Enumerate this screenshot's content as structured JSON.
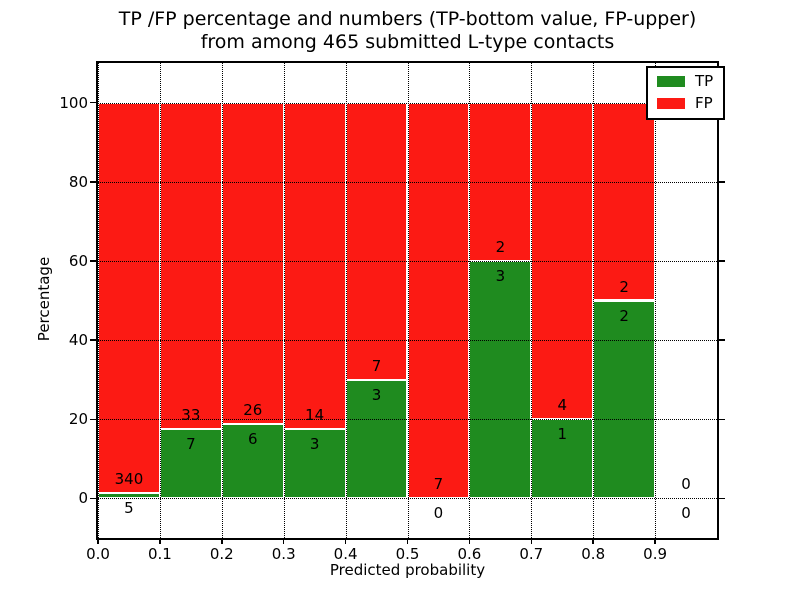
{
  "title": {
    "line1": "TP /FP percentage and numbers (TP-bottom value, FP-upper)",
    "line2": "from among 465 submitted L-type contacts"
  },
  "legend": {
    "items": [
      {
        "label": "TP",
        "color": "#1f8b1f"
      },
      {
        "label": "FP",
        "color": "#fc1a14"
      }
    ]
  },
  "colors": {
    "tp": "#1f8b1f",
    "fp": "#fc1a14",
    "grid": "#000000",
    "bar_edge": "#ffffff",
    "background": "#ffffff"
  },
  "chart_data": {
    "type": "bar",
    "stacked": true,
    "title": "TP /FP percentage and numbers (TP-bottom value, FP-upper) from among 465 submitted L-type contacts",
    "xlabel": "Predicted probability",
    "ylabel": "Percentage",
    "xlim": [
      0,
      1.0
    ],
    "ylim": [
      -10,
      110
    ],
    "x_ticks": [
      0.0,
      0.1,
      0.2,
      0.3,
      0.4,
      0.5,
      0.6,
      0.7,
      0.8,
      0.9
    ],
    "x_tick_labels": [
      "0.0",
      "0.1",
      "0.2",
      "0.3",
      "0.4",
      "0.5",
      "0.6",
      "0.7",
      "0.8",
      "0.9"
    ],
    "y_ticks": [
      0,
      20,
      40,
      60,
      80,
      100
    ],
    "grid": "dotted",
    "legend_position": "upper right",
    "bin_edges": [
      0.0,
      0.1,
      0.2,
      0.3,
      0.4,
      0.5,
      0.6,
      0.7,
      0.8,
      0.9,
      1.0
    ],
    "series": [
      {
        "name": "TP",
        "color": "#1f8b1f",
        "counts": [
          5,
          7,
          6,
          3,
          3,
          0,
          3,
          1,
          2,
          0
        ]
      },
      {
        "name": "FP",
        "color": "#fc1a14",
        "counts": [
          340,
          33,
          26,
          14,
          7,
          7,
          2,
          4,
          2,
          0
        ]
      }
    ],
    "tp_percent": [
      1.45,
      17.5,
      18.75,
      17.65,
      30.0,
      0.0,
      60.0,
      20.0,
      50.0,
      null
    ],
    "total_contacts": 465
  }
}
